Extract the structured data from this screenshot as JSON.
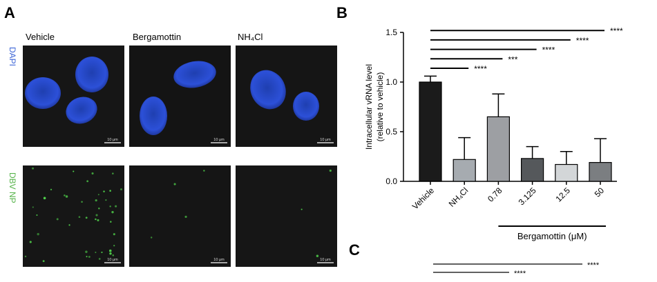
{
  "panel_a": {
    "label": "A",
    "columns": [
      "Vehicle",
      "Bergamottin",
      "NH₄Cl"
    ],
    "rows": [
      "DAPI",
      "DBV NP"
    ],
    "scale_bar": "10 μm"
  },
  "chart_data": {
    "type": "bar",
    "panel_label": "B",
    "y_label": [
      "Intracellular vRNA level",
      "(relative to vehicle)"
    ],
    "categories": [
      "Vehicle",
      "NH₄Cl",
      "0.78",
      "3.125",
      "12.5",
      "50"
    ],
    "values": [
      1.0,
      0.22,
      0.65,
      0.23,
      0.17,
      0.19
    ],
    "errors": [
      0.06,
      0.22,
      0.23,
      0.12,
      0.13,
      0.24
    ],
    "colors": [
      "#1b1b1b",
      "#a6abb0",
      "#9d9fa3",
      "#55585b",
      "#d3d6d8",
      "#7b7e81"
    ],
    "ylim": [
      0,
      1.5
    ],
    "yticks": [
      {
        "value": 0,
        "label": "0.0"
      },
      0.5,
      {
        "value": 1,
        "label": "1.0"
      },
      1.5
    ],
    "group_label": "Bergamottin (μM)",
    "significance": [
      "****",
      "***",
      "****",
      "****",
      "****"
    ]
  },
  "panel_c": {
    "label": "C",
    "significance": [
      "****",
      "****"
    ]
  }
}
